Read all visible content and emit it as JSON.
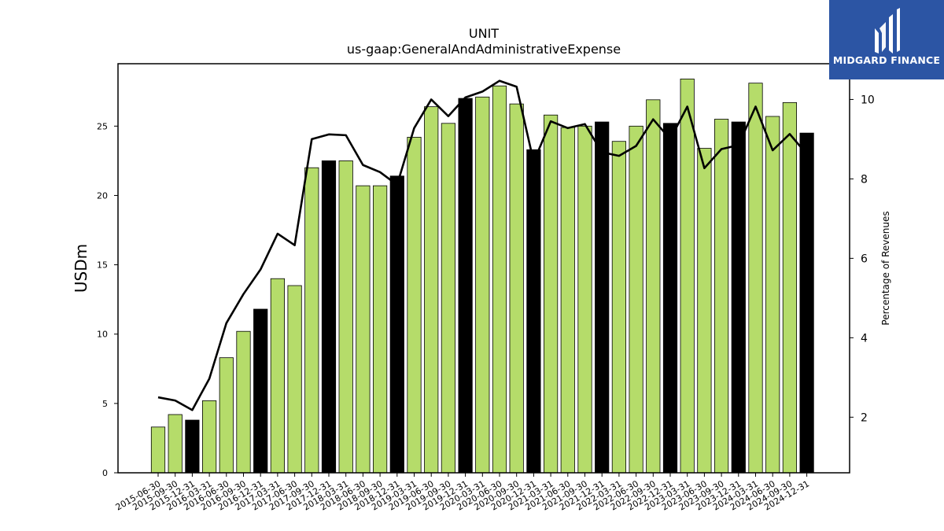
{
  "chart_data": {
    "type": "bar+line",
    "title": "UNIT",
    "subtitle": "us-gaap:GeneralAndAdministrativeExpense",
    "ylabel": "USDm",
    "y2label": "Percentage of Revenues",
    "ylim": [
      0,
      29.5
    ],
    "y2lim": [
      0.6,
      10.9
    ],
    "yticks": [
      0,
      5,
      10,
      15,
      20,
      25
    ],
    "y2ticks": [
      2,
      4,
      6,
      8,
      10
    ],
    "categories": [
      "2015-06-30",
      "2015-09-30",
      "2015-12-31",
      "2016-03-31",
      "2016-06-30",
      "2016-09-30",
      "2016-12-31",
      "2017-03-31",
      "2017-06-30",
      "2017-09-30",
      "2017-12-31",
      "2018-03-31",
      "2018-06-30",
      "2018-09-30",
      "2018-12-31",
      "2019-03-31",
      "2019-06-30",
      "2019-09-30",
      "2019-12-31",
      "2020-03-31",
      "2020-06-30",
      "2020-09-30",
      "2020-12-31",
      "2021-03-31",
      "2021-06-30",
      "2021-09-30",
      "2021-12-31",
      "2022-03-31",
      "2022-06-30",
      "2022-09-30",
      "2022-12-31",
      "2023-03-31",
      "2023-06-30",
      "2023-09-30",
      "2023-12-31",
      "2024-03-31",
      "2024-06-30",
      "2024-09-30",
      "2024-12-31"
    ],
    "series": [
      {
        "type": "bar",
        "axis": "left",
        "values": [
          3.3,
          4.2,
          3.8,
          5.2,
          8.3,
          10.2,
          11.8,
          14.0,
          13.5,
          22.0,
          22.5,
          22.5,
          20.7,
          20.7,
          21.4,
          24.2,
          26.4,
          25.2,
          27.0,
          27.1,
          27.9,
          26.6,
          23.3,
          25.8,
          24.9,
          25.0,
          25.3,
          23.9,
          25.0,
          26.9,
          25.2,
          28.4,
          23.4,
          25.5,
          25.3,
          28.1,
          25.7,
          26.7,
          24.5
        ],
        "highlight": [
          false,
          false,
          true,
          false,
          false,
          false,
          true,
          false,
          false,
          false,
          true,
          false,
          false,
          false,
          true,
          false,
          false,
          false,
          true,
          false,
          false,
          false,
          true,
          false,
          false,
          false,
          true,
          false,
          false,
          false,
          true,
          false,
          false,
          false,
          true,
          false,
          false,
          false,
          true
        ]
      },
      {
        "type": "line",
        "axis": "right",
        "values": [
          2.5,
          2.42,
          2.18,
          2.97,
          4.37,
          5.1,
          5.72,
          6.62,
          6.33,
          9.0,
          9.12,
          9.1,
          8.35,
          8.17,
          7.85,
          9.28,
          10.0,
          9.58,
          10.05,
          10.2,
          10.47,
          10.32,
          8.43,
          9.45,
          9.28,
          9.38,
          8.67,
          8.58,
          8.83,
          9.5,
          9.0,
          9.82,
          8.27,
          8.75,
          8.85,
          9.82,
          8.72,
          9.13,
          8.62
        ]
      }
    ],
    "colors": {
      "bar": "#b5dc6a",
      "bar_highlight": "#000000",
      "line": "#000000"
    },
    "legend": "none",
    "grid": false
  },
  "logo": {
    "text": "MIDGARD FINANCE"
  }
}
